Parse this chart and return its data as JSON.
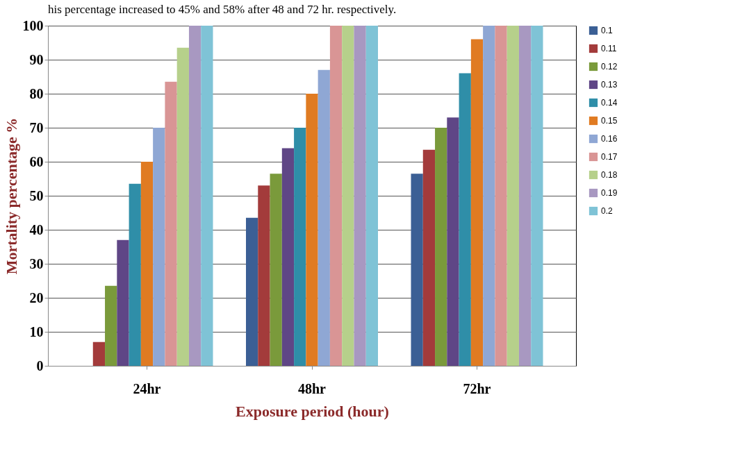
{
  "chart_data": {
    "type": "bar",
    "xlabel": "Exposure period (hour)",
    "ylabel": "Mortality percentage %",
    "annotations": [
      "his percentage increased to 45% and 58% after 48 and 72 hr. respectively."
    ],
    "categories": [
      "24hr",
      "48hr",
      "72hr"
    ],
    "series": [
      {
        "name": "0.1",
        "color": "#3b5f95",
        "values": [
          0,
          43.5,
          56.5
        ]
      },
      {
        "name": "0.11",
        "color": "#a33b3b",
        "values": [
          7,
          53,
          63.5
        ]
      },
      {
        "name": "0.12",
        "color": "#7a9a3b",
        "values": [
          23.5,
          56.5,
          70
        ]
      },
      {
        "name": "0.13",
        "color": "#5f4686",
        "values": [
          37,
          64,
          73
        ]
      },
      {
        "name": "0.14",
        "color": "#2f8ea8",
        "values": [
          53.5,
          70,
          86
        ]
      },
      {
        "name": "0.15",
        "color": "#e07b22",
        "values": [
          60,
          80,
          96
        ]
      },
      {
        "name": "0.16",
        "color": "#8fa7d4",
        "values": [
          70,
          87,
          100
        ]
      },
      {
        "name": "0.17",
        "color": "#d99595",
        "values": [
          83.5,
          100,
          100
        ]
      },
      {
        "name": "0.18",
        "color": "#b6d08b",
        "values": [
          93.5,
          100,
          100
        ]
      },
      {
        "name": "0.19",
        "color": "#a898c1",
        "values": [
          100,
          100,
          100
        ]
      },
      {
        "name": "0.2",
        "color": "#7fc3d6",
        "values": [
          100,
          100,
          100
        ]
      }
    ],
    "ylim": [
      0,
      100
    ],
    "yticks": [
      0,
      10,
      20,
      30,
      40,
      50,
      60,
      70,
      80,
      90,
      100
    ],
    "grid": "y",
    "legend": "right"
  }
}
